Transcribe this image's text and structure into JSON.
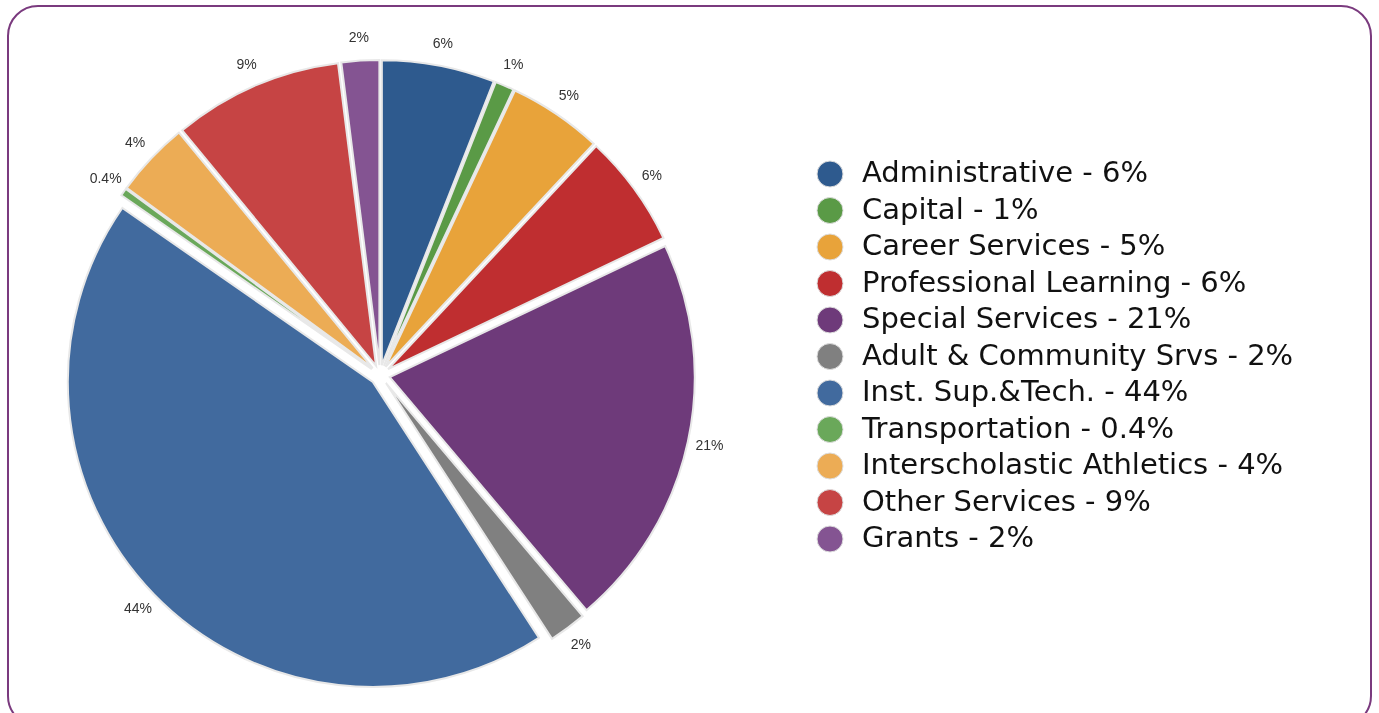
{
  "chart_data": {
    "type": "pie",
    "categories": [
      "Administrative - 6%",
      "Capital - 1%",
      "Career Services - 5%",
      "Professional Learning - 6%",
      "Special Services - 21%",
      "Adult & Community Srvs - 2%",
      "Inst. Sup.&Tech. - 44%",
      "Transportation - 0.4%",
      "Interscholastic Athletics - 4%",
      "Other Services - 9%",
      "Grants - 2%"
    ],
    "values": [
      6,
      1,
      5,
      6,
      21,
      2,
      44,
      0.4,
      4,
      9,
      2
    ],
    "value_labels": [
      "6%",
      "1%",
      "5%",
      "6%",
      "21%",
      "2%",
      "44%",
      "0.4%",
      "4%",
      "9%",
      "2%"
    ],
    "colors": [
      "#2e5a8e",
      "#5a9a46",
      "#e8a33a",
      "#bf2e30",
      "#6e3a7a",
      "#808080",
      "#416a9e",
      "#6aa85a",
      "#ecac55",
      "#c64444",
      "#845492"
    ],
    "legend": "right"
  }
}
